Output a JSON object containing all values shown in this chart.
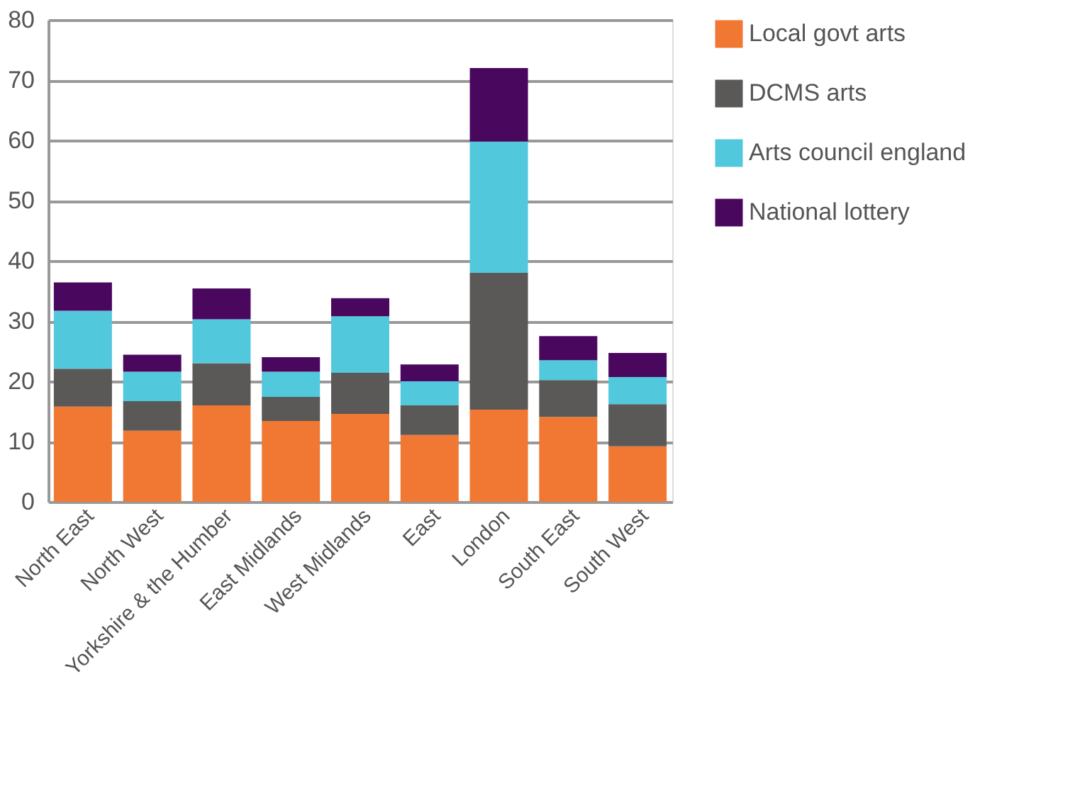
{
  "chart_data": {
    "type": "bar",
    "stacked": true,
    "categories": [
      "North East",
      "North West",
      "Yorkshire & the Humber",
      "East Midlands",
      "West Midlands",
      "East",
      "London",
      "South East",
      "South West"
    ],
    "series": [
      {
        "name": "Local govt arts",
        "color": "#f07832",
        "values": [
          15.8,
          11.8,
          16.0,
          13.4,
          14.6,
          11.1,
          15.3,
          14.1,
          9.2
        ]
      },
      {
        "name": "DCMS arts",
        "color": "#5a5958",
        "values": [
          6.3,
          4.9,
          7.0,
          4.0,
          6.8,
          4.9,
          22.7,
          6.1,
          7.0
        ]
      },
      {
        "name": "Arts council england",
        "color": "#52c8dc",
        "values": [
          9.6,
          4.9,
          7.3,
          4.2,
          9.4,
          4.0,
          21.8,
          3.3,
          4.5
        ]
      },
      {
        "name": "National lottery",
        "color": "#4a075e",
        "values": [
          4.7,
          2.8,
          5.1,
          2.4,
          3.0,
          2.8,
          12.2,
          4.0,
          4.0
        ]
      }
    ],
    "ylim": [
      0,
      80
    ],
    "yticks": [
      0,
      10,
      20,
      30,
      40,
      50,
      60,
      70,
      80
    ],
    "grid": "y",
    "legend": "right"
  }
}
